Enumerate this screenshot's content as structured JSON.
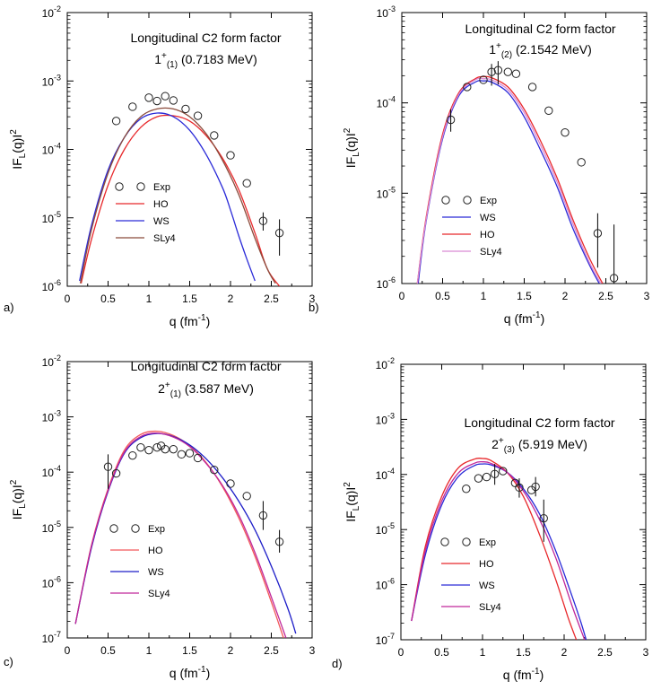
{
  "chart_data": [
    {
      "panel_label": "a)",
      "type": "line",
      "title": "Longitudinal C2 form factor",
      "state_parts": [
        "1",
        "+",
        "(1)",
        " (0.7183 MeV)"
      ],
      "xlabel_parts": [
        "q (fm",
        "-1",
        ")"
      ],
      "ylabel_parts": [
        "IF",
        "L",
        "(q)I",
        "2"
      ],
      "xlim": [
        0,
        3
      ],
      "ylim": [
        1e-06,
        0.01
      ],
      "x_ticks": [
        0,
        0.5,
        1,
        1.5,
        2,
        2.5,
        3
      ],
      "x_tick_labels": [
        "0",
        "0.5",
        "1",
        "1.5",
        "2",
        "2.5",
        "3"
      ],
      "y_ticks": [
        1e-06,
        1e-05,
        0.0001,
        0.001,
        0.01
      ],
      "y_tick_labels": [
        [
          "10",
          "-6"
        ],
        [
          "10",
          "-5"
        ],
        [
          "10",
          "-4"
        ],
        [
          "10",
          "-3"
        ],
        [
          "10",
          "-2"
        ]
      ],
      "series": [
        {
          "name": "HO",
          "color": "#e8282b",
          "x": [
            0.17,
            0.3,
            0.5,
            0.7,
            0.9,
            1.1,
            1.3,
            1.5,
            1.7,
            1.9,
            2.1,
            2.3,
            2.45,
            2.6
          ],
          "y": [
            1.1e-06,
            5e-06,
            3e-05,
            0.0001,
            0.00021,
            0.0003,
            0.00031,
            0.00026,
            0.00016,
            7.5e-05,
            2.6e-05,
            6e-06,
            1.8e-06,
            1e-06
          ]
        },
        {
          "name": "WS",
          "color": "#2a2ad8",
          "x": [
            0.15,
            0.3,
            0.5,
            0.7,
            0.9,
            1.1,
            1.3,
            1.5,
            1.7,
            1.9,
            2.0,
            2.1,
            2.2,
            2.3
          ],
          "y": [
            1.2e-06,
            8e-06,
            5e-05,
            0.00015,
            0.00028,
            0.00034,
            0.0003,
            0.00019,
            8.5e-05,
            2.8e-05,
            1.3e-05,
            5.5e-06,
            2.5e-06,
            1.2e-06
          ]
        },
        {
          "name": "SLy4",
          "color": "#8a4a3a",
          "x": [
            0.16,
            0.3,
            0.5,
            0.7,
            0.9,
            1.1,
            1.3,
            1.5,
            1.7,
            1.9,
            2.1,
            2.3,
            2.45,
            2.55
          ],
          "y": [
            1.1e-06,
            7e-06,
            4.5e-05,
            0.00015,
            0.0003,
            0.00039,
            0.00039,
            0.0003,
            0.00017,
            7e-05,
            2.2e-05,
            5e-06,
            1.8e-06,
            1.1e-06
          ]
        }
      ],
      "exp": {
        "name": "Exp",
        "x": [
          0.6,
          0.8,
          1.0,
          1.1,
          1.2,
          1.3,
          1.45,
          1.6,
          1.8,
          2.0,
          2.2,
          2.4,
          2.6
        ],
        "y": [
          0.00026,
          0.00042,
          0.00057,
          0.00051,
          0.0006,
          0.00052,
          0.00039,
          0.00031,
          0.00016,
          8.2e-05,
          3.2e-05,
          9e-06,
          6e-06
        ],
        "err_lo": [
          null,
          null,
          null,
          null,
          null,
          null,
          null,
          null,
          null,
          null,
          null,
          6.5e-06,
          2.8e-06
        ],
        "err_hi": [
          null,
          null,
          null,
          null,
          null,
          null,
          null,
          null,
          null,
          null,
          null,
          1.2e-05,
          9.5e-06
        ]
      },
      "legend_order": [
        "Exp",
        "HO",
        "WS",
        "SLy4"
      ],
      "legend": "bottom-left"
    },
    {
      "panel_label": "b)",
      "type": "line",
      "title": "Longitudinal C2 form factor",
      "state_parts": [
        "1",
        "+",
        "(2)",
        " (2.1542 MeV)"
      ],
      "xlabel_parts": [
        "q (fm",
        "-1",
        ")"
      ],
      "ylabel_parts": [
        "IF",
        "L",
        "(q)I",
        "2"
      ],
      "xlim": [
        0,
        3
      ],
      "ylim": [
        1e-06,
        0.001
      ],
      "x_ticks": [
        0,
        0.5,
        1,
        1.5,
        2,
        2.5,
        3
      ],
      "x_tick_labels": [
        "0",
        "0.5",
        "1",
        "1.5",
        "2",
        "2.5",
        "3"
      ],
      "y_ticks": [
        1e-06,
        1e-05,
        0.0001,
        0.001
      ],
      "y_tick_labels": [
        [
          "10",
          "-6"
        ],
        [
          "10",
          "-5"
        ],
        [
          "10",
          "-4"
        ],
        [
          "10",
          "-3"
        ]
      ],
      "series": [
        {
          "name": "WS",
          "color": "#2a2ad8",
          "x": [
            0.2,
            0.3,
            0.5,
            0.7,
            0.9,
            1.0,
            1.1,
            1.3,
            1.5,
            1.7,
            1.9,
            2.1,
            2.3,
            2.42
          ],
          "y": [
            1e-06,
            5e-06,
            4e-05,
            0.00012,
            0.00017,
            0.000175,
            0.00017,
            0.00013,
            7e-05,
            3e-05,
            1.2e-05,
            4e-06,
            1.6e-06,
            1e-06
          ]
        },
        {
          "name": "HO",
          "color": "#e8282b",
          "x": [
            0.19,
            0.3,
            0.5,
            0.7,
            0.9,
            1.0,
            1.1,
            1.3,
            1.5,
            1.7,
            1.9,
            2.1,
            2.3,
            2.46
          ],
          "y": [
            1e-06,
            5.5e-06,
            4.5e-05,
            0.00013,
            0.000185,
            0.000195,
            0.00019,
            0.00015,
            8.5e-05,
            3.8e-05,
            1.5e-05,
            5e-06,
            1.9e-06,
            1e-06
          ]
        },
        {
          "name": "SLy4",
          "color": "#d98ad3",
          "x": [
            0.19,
            0.3,
            0.5,
            0.7,
            0.9,
            1.0,
            1.1,
            1.3,
            1.5,
            1.7,
            1.9,
            2.1,
            2.3,
            2.44
          ],
          "y": [
            1e-06,
            5.2e-06,
            4.2e-05,
            0.000125,
            0.00018,
            0.000185,
            0.00018,
            0.00014,
            7.8e-05,
            3.4e-05,
            1.35e-05,
            4.5e-06,
            1.7e-06,
            1e-06
          ]
        }
      ],
      "exp": {
        "name": "Exp",
        "x": [
          0.6,
          0.8,
          1.0,
          1.1,
          1.18,
          1.3,
          1.4,
          1.6,
          1.8,
          2.0,
          2.2,
          2.4,
          2.6
        ],
        "y": [
          6.5e-05,
          0.00015,
          0.00018,
          0.00022,
          0.00023,
          0.00022,
          0.00021,
          0.00015,
          8.2e-05,
          4.7e-05,
          2.2e-05,
          3.6e-06,
          1.15e-06
        ],
        "err_lo": [
          4.8e-05,
          null,
          null,
          0.000155,
          0.00016,
          null,
          null,
          null,
          null,
          null,
          null,
          1.5e-06,
          1e-06
        ],
        "err_hi": [
          8.5e-05,
          null,
          null,
          0.00027,
          0.00029,
          null,
          null,
          null,
          null,
          null,
          null,
          6e-06,
          4.5e-06
        ]
      },
      "legend_order": [
        "Exp",
        "WS",
        "HO",
        "SLy4"
      ],
      "legend": "bottom-left"
    },
    {
      "panel_label": "c)",
      "type": "line",
      "title": "Longitudinal C2 form factor",
      "state_parts": [
        "2",
        "+",
        "(1)",
        " (3.587 MeV)"
      ],
      "xlabel_parts": [
        "q (fm",
        "-1",
        ")"
      ],
      "ylabel_parts": [
        "IF",
        "L",
        "(q)I",
        "2"
      ],
      "xlim": [
        0,
        3
      ],
      "ylim": [
        1e-07,
        0.01
      ],
      "x_ticks": [
        0,
        0.5,
        1,
        1.5,
        2,
        2.5,
        3
      ],
      "x_tick_labels": [
        "0",
        "0.5",
        "1",
        "1.5",
        "2",
        "2.5",
        "3"
      ],
      "y_ticks": [
        1e-07,
        1e-06,
        1e-05,
        0.0001,
        0.001,
        0.01
      ],
      "y_tick_labels": [
        [
          "10",
          "-7"
        ],
        [
          "10",
          "-6"
        ],
        [
          "10",
          "-5"
        ],
        [
          "10",
          "-4"
        ],
        [
          "10",
          "-3"
        ],
        [
          "10",
          "-2"
        ]
      ],
      "series": [
        {
          "name": "HO",
          "color": "#f2575a",
          "x": [
            0.1,
            0.3,
            0.5,
            0.7,
            0.9,
            1.1,
            1.3,
            1.5,
            1.7,
            1.9,
            2.1,
            2.3,
            2.5,
            2.65
          ],
          "y": [
            1.8e-07,
            5e-06,
            5e-05,
            0.00025,
            0.00048,
            0.00055,
            0.00046,
            0.0003,
            0.00015,
            5.5e-05,
            1.5e-05,
            3e-06,
            4.5e-07,
            1e-07
          ]
        },
        {
          "name": "WS",
          "color": "#1e1ec8",
          "x": [
            0.1,
            0.3,
            0.5,
            0.7,
            0.9,
            1.1,
            1.3,
            1.5,
            1.7,
            1.9,
            2.1,
            2.3,
            2.5,
            2.7,
            2.8
          ],
          "y": [
            1.8e-07,
            4.5e-06,
            4.5e-05,
            0.00022,
            0.00042,
            0.0005,
            0.00044,
            0.00031,
            0.000175,
            8e-05,
            3e-05,
            9e-06,
            2e-06,
            3.5e-07,
            1.2e-07
          ]
        },
        {
          "name": "SLy4",
          "color": "#c0279a",
          "x": [
            0.1,
            0.3,
            0.5,
            0.7,
            0.9,
            1.1,
            1.3,
            1.5,
            1.7,
            1.9,
            2.1,
            2.3,
            2.5,
            2.68
          ],
          "y": [
            1.8e-07,
            4.8e-06,
            4.7e-05,
            0.00023,
            0.00044,
            0.00051,
            0.00043,
            0.00029,
            0.000145,
            5.8e-05,
            1.7e-05,
            3.5e-06,
            5.5e-07,
            1e-07
          ]
        }
      ],
      "exp": {
        "name": "Exp",
        "x": [
          0.5,
          0.6,
          0.8,
          0.9,
          1.0,
          1.1,
          1.15,
          1.2,
          1.3,
          1.4,
          1.5,
          1.6,
          1.8,
          2.0,
          2.2,
          2.4,
          2.6
        ],
        "y": [
          0.000125,
          9.5e-05,
          0.0002,
          0.00028,
          0.00025,
          0.00028,
          0.0003,
          0.00026,
          0.00026,
          0.00021,
          0.00022,
          0.00018,
          0.00011,
          6.2e-05,
          3.7e-05,
          1.65e-05,
          5.5e-06
        ],
        "err_lo": [
          5e-05,
          null,
          null,
          null,
          null,
          null,
          null,
          null,
          null,
          null,
          null,
          null,
          null,
          null,
          null,
          9e-06,
          3.5e-06
        ],
        "err_hi": [
          0.00021,
          null,
          null,
          null,
          null,
          null,
          null,
          null,
          null,
          null,
          null,
          null,
          null,
          null,
          null,
          3e-05,
          9e-06
        ]
      },
      "legend_order": [
        "Exp",
        "HO",
        "WS",
        "SLy4"
      ],
      "legend": "bottom-left"
    },
    {
      "panel_label": "d)",
      "type": "line",
      "title": "Longitudinal C2 form factor",
      "state_parts": [
        "2",
        "+",
        "(3)",
        " (5.919 MeV)"
      ],
      "xlabel_parts": [
        "q (fm",
        "-1",
        ")"
      ],
      "ylabel_parts": [
        "IF",
        "L",
        "(q)I",
        "2"
      ],
      "xlim": [
        0,
        3
      ],
      "ylim": [
        1e-07,
        0.01
      ],
      "x_ticks": [
        0,
        0.5,
        1,
        1.5,
        2,
        2.5,
        3
      ],
      "x_tick_labels": [
        "0",
        "0.5",
        "1",
        "1.5",
        "2",
        "2.5",
        "3"
      ],
      "y_ticks": [
        1e-07,
        1e-06,
        1e-05,
        0.0001,
        0.001,
        0.01
      ],
      "y_tick_labels": [
        [
          "10",
          "-7"
        ],
        [
          "10",
          "-6"
        ],
        [
          "10",
          "-5"
        ],
        [
          "10",
          "-4"
        ],
        [
          "10",
          "-3"
        ],
        [
          "10",
          "-2"
        ]
      ],
      "series": [
        {
          "name": "HO",
          "color": "#e8282b",
          "x": [
            0.13,
            0.3,
            0.5,
            0.7,
            0.9,
            1.0,
            1.1,
            1.3,
            1.5,
            1.7,
            1.9,
            2.05,
            2.15
          ],
          "y": [
            2.2e-07,
            5e-06,
            4e-05,
            0.00013,
            0.00019,
            0.000195,
            0.00018,
            0.00011,
            4e-05,
            8e-06,
            1.2e-06,
            2.5e-07,
            1e-07
          ]
        },
        {
          "name": "WS",
          "color": "#2a2ad8",
          "x": [
            0.13,
            0.3,
            0.5,
            0.7,
            0.9,
            1.0,
            1.1,
            1.3,
            1.5,
            1.7,
            1.9,
            2.1,
            2.2,
            2.27
          ],
          "y": [
            2.2e-07,
            3.5e-06,
            2.8e-05,
            9e-05,
            0.000145,
            0.000155,
            0.00015,
            0.00011,
            5.5e-05,
            1.9e-05,
            4e-06,
            6e-07,
            2.2e-07,
            1e-07
          ]
        },
        {
          "name": "SLy4",
          "color": "#c0279a",
          "x": [
            0.13,
            0.3,
            0.5,
            0.7,
            0.9,
            1.0,
            1.1,
            1.3,
            1.5,
            1.7,
            1.9,
            2.1,
            2.25
          ],
          "y": [
            2.2e-07,
            4.2e-06,
            3.3e-05,
            0.000105,
            0.00016,
            0.00017,
            0.00016,
            0.00011,
            5e-05,
            1.5e-05,
            3e-06,
            4e-07,
            1e-07
          ]
        }
      ],
      "exp": {
        "name": "Exp",
        "x": [
          0.8,
          0.95,
          1.05,
          1.15,
          1.25,
          1.4,
          1.45,
          1.6,
          1.65,
          1.75
        ],
        "y": [
          5.5e-05,
          8.5e-05,
          9e-05,
          0.000102,
          0.000115,
          7e-05,
          5.8e-05,
          5.2e-05,
          6e-05,
          1.6e-05
        ],
        "err_lo": [
          null,
          null,
          null,
          6.5e-05,
          null,
          null,
          3.8e-05,
          null,
          4e-05,
          6e-06
        ],
        "err_hi": [
          null,
          null,
          null,
          0.000155,
          null,
          null,
          8.5e-05,
          null,
          9e-05,
          3.5e-05
        ]
      },
      "legend_order": [
        "Exp",
        "HO",
        "WS",
        "SLy4"
      ],
      "legend": "bottom-left"
    }
  ]
}
